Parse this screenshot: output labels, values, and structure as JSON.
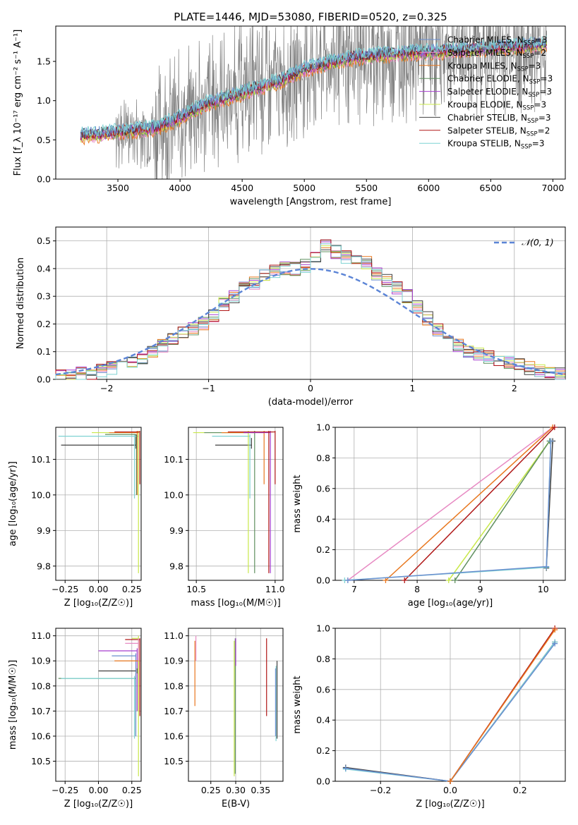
{
  "figure": {
    "title": "PLATE=1446, MJD=53080, FIBERID=0520, z=0.325"
  },
  "colors": {
    "data": "#808080",
    "chabrier_miles": "#6a8fcf",
    "salpeter_miles": "#e78ac3",
    "kroupa_miles": "#e8771e",
    "chabrier_elodie": "#5f8f5f",
    "salpeter_elodie": "#a63fcf",
    "kroupa_elodie": "#c8e84a",
    "chabrier_stelib": "#404040",
    "salpeter_stelib": "#b01717",
    "kroupa_stelib": "#7fd3d3",
    "normal": "#5b84d6",
    "grid": "#b0b0b0"
  },
  "chart_data": [
    {
      "id": "spectrum",
      "type": "line",
      "title": "PLATE=1446, MJD=53080, FIBERID=0520, z=0.325",
      "xlabel": "wavelength [Angstrom, rest frame]",
      "ylabel": "Flux [f_λ 10⁻¹⁷ erg cm⁻² s⁻¹ A⁻¹]",
      "xlim": [
        3000,
        7100
      ],
      "ylim": [
        0,
        1.95
      ],
      "xticks": [
        "3500",
        "4000",
        "4500",
        "5000",
        "5500",
        "6000",
        "6500",
        "7000"
      ],
      "xtick_values": [
        3500,
        4000,
        4500,
        5000,
        5500,
        6000,
        6500,
        7000
      ],
      "yticks": [
        "0.0",
        "0.5",
        "1.0",
        "1.5"
      ],
      "ytick_values": [
        0,
        0.5,
        1.0,
        1.5
      ],
      "grid": false,
      "legend_position": "upper-right",
      "legend": [
        {
          "label": "Chabrier MILES, N",
          "sub": "SSP",
          "tail": "=3",
          "color": "chabrier_miles"
        },
        {
          "label": "Salpeter MILES, N",
          "sub": "SSP",
          "tail": "=2",
          "color": "salpeter_miles"
        },
        {
          "label": "Kroupa MILES, N",
          "sub": "SSP",
          "tail": "=3",
          "color": "kroupa_miles"
        },
        {
          "label": "Chabrier ELODIE, N",
          "sub": "SSP",
          "tail": "=3",
          "color": "chabrier_elodie"
        },
        {
          "label": "Salpeter ELODIE, N",
          "sub": "SSP",
          "tail": "=3",
          "color": "salpeter_elodie"
        },
        {
          "label": "Kroupa ELODIE, N",
          "sub": "SSP",
          "tail": "=3",
          "color": "kroupa_elodie"
        },
        {
          "label": "Chabrier STELIB, N",
          "sub": "SSP",
          "tail": "=3",
          "color": "chabrier_stelib"
        },
        {
          "label": "Salpeter STELIB, N",
          "sub": "SSP",
          "tail": "=2",
          "color": "salpeter_stelib"
        },
        {
          "label": "Kroupa STELIB, N",
          "sub": "SSP",
          "tail": "=3",
          "color": "kroupa_stelib"
        }
      ],
      "continuum_x": [
        3200,
        3400,
        3600,
        3800,
        4000,
        4200,
        4400,
        4600,
        4800,
        5000,
        5200,
        5400,
        5600,
        5800,
        6000,
        6200,
        6400,
        6600,
        6800,
        6950
      ],
      "continuum_y": [
        0.55,
        0.58,
        0.62,
        0.65,
        0.78,
        0.95,
        1.05,
        1.15,
        1.25,
        1.4,
        1.48,
        1.55,
        1.58,
        1.6,
        1.62,
        1.64,
        1.66,
        1.68,
        1.7,
        1.72
      ]
    },
    {
      "id": "residuals",
      "type": "bar",
      "xlabel": "(data-model)/error",
      "ylabel": "Normed distribution",
      "xlim": [
        -2.5,
        2.5
      ],
      "ylim": [
        0,
        0.55
      ],
      "xticks": [
        "−2",
        "−1",
        "0",
        "1",
        "2"
      ],
      "xtick_values": [
        -2,
        -1,
        0,
        1,
        2
      ],
      "yticks": [
        "0.0",
        "0.1",
        "0.2",
        "0.3",
        "0.4",
        "0.5"
      ],
      "ytick_values": [
        0,
        0.1,
        0.2,
        0.3,
        0.4,
        0.5
      ],
      "grid": true,
      "legend_position": "upper-right",
      "legend_label": "𝒩(0, 1)",
      "bin_width": 0.1,
      "bin_start": -2.5,
      "hist_values": [
        0.01,
        0.01,
        0.02,
        0.02,
        0.03,
        0.04,
        0.05,
        0.06,
        0.08,
        0.1,
        0.12,
        0.15,
        0.17,
        0.18,
        0.2,
        0.23,
        0.27,
        0.3,
        0.33,
        0.35,
        0.38,
        0.39,
        0.4,
        0.4,
        0.41,
        0.44,
        0.48,
        0.46,
        0.44,
        0.43,
        0.42,
        0.38,
        0.36,
        0.33,
        0.3,
        0.26,
        0.22,
        0.18,
        0.15,
        0.12,
        0.1,
        0.09,
        0.08,
        0.07,
        0.06,
        0.05,
        0.04,
        0.03,
        0.03,
        0.02
      ]
    },
    {
      "id": "age-vs-Z",
      "type": "scatter",
      "xlabel": "Z [log₁₀(Z/Z☉)]",
      "ylabel": "age  [log₁₀(age/yr)]",
      "xlim": [
        -0.32,
        0.32
      ],
      "ylim": [
        9.76,
        10.19
      ],
      "xticks": [
        "−0.25",
        "0.00",
        "0.25"
      ],
      "xtick_values": [
        -0.25,
        0.0,
        0.25
      ],
      "yticks": [
        "9.8",
        "9.9",
        "10.0",
        "10.1"
      ],
      "ytick_values": [
        9.8,
        9.9,
        10.0,
        10.1
      ],
      "grid": true
    },
    {
      "id": "age-vs-mass",
      "type": "scatter",
      "xlabel": "mass [log₁₀(M/M☉)]",
      "xlim": [
        10.45,
        11.05
      ],
      "ylim": [
        9.76,
        10.19
      ],
      "xticks": [
        "10.5",
        "11.0"
      ],
      "xtick_values": [
        10.5,
        11.0
      ],
      "yticks": [
        "9.8",
        "9.9",
        "10.0",
        "10.1"
      ],
      "ytick_values": [
        9.8,
        9.9,
        10.0,
        10.1
      ],
      "grid": true
    },
    {
      "id": "mass-weight-vs-age",
      "type": "line",
      "xlabel": "age  [log₁₀(age/yr)]",
      "ylabel": "mass weight",
      "xlim": [
        6.7,
        10.35
      ],
      "ylim": [
        0,
        1.0
      ],
      "xticks": [
        "7",
        "8",
        "9",
        "10"
      ],
      "xtick_values": [
        7,
        8,
        9,
        10
      ],
      "yticks": [
        "0.0",
        "0.2",
        "0.4",
        "0.6",
        "0.8",
        "1.0"
      ],
      "ytick_values": [
        0,
        0.2,
        0.4,
        0.6,
        0.8,
        1.0
      ],
      "grid": true,
      "series": [
        {
          "color": "salpeter_miles",
          "x": [
            6.9,
            10.15
          ],
          "y": [
            0.0,
            1.0
          ]
        },
        {
          "color": "kroupa_miles",
          "x": [
            7.5,
            10.15
          ],
          "y": [
            0.0,
            1.0
          ]
        },
        {
          "color": "salpeter_stelib",
          "x": [
            7.8,
            10.18
          ],
          "y": [
            0.0,
            1.0
          ]
        },
        {
          "color": "kroupa_elodie",
          "x": [
            8.5,
            10.1
          ],
          "y": [
            0.0,
            0.91
          ]
        },
        {
          "color": "chabrier_elodie",
          "x": [
            8.6,
            10.1
          ],
          "y": [
            0.0,
            0.91
          ]
        },
        {
          "color": "chabrier_stelib",
          "x": [
            10.05,
            10.15
          ],
          "y": [
            0.08,
            0.91
          ]
        },
        {
          "color": "kroupa_stelib",
          "x": [
            6.85,
            10.05,
            10.12
          ],
          "y": [
            0.0,
            0.085,
            0.91
          ]
        },
        {
          "color": "chabrier_miles",
          "x": [
            6.9,
            10.05,
            10.12
          ],
          "y": [
            0.0,
            0.09,
            0.91
          ]
        }
      ]
    },
    {
      "id": "mass-vs-Z",
      "type": "scatter",
      "xlabel": "Z [log₁₀(Z/Z☉)]",
      "ylabel": "mass [log₁₀(M/M☉)]",
      "xlim": [
        -0.32,
        0.32
      ],
      "ylim": [
        10.42,
        11.03
      ],
      "xticks": [
        "−0.25",
        "0.00",
        "0.25"
      ],
      "xtick_values": [
        -0.25,
        0.0,
        0.25
      ],
      "yticks": [
        "10.5",
        "10.6",
        "10.7",
        "10.8",
        "10.9",
        "11.0"
      ],
      "ytick_values": [
        10.5,
        10.6,
        10.7,
        10.8,
        10.9,
        11.0
      ],
      "grid": true
    },
    {
      "id": "mass-vs-EBV",
      "type": "scatter",
      "xlabel": "E(B-V)",
      "xlim": [
        0.205,
        0.395
      ],
      "ylim": [
        10.42,
        11.03
      ],
      "xticks": [
        "0.25",
        "0.30",
        "0.35"
      ],
      "xtick_values": [
        0.25,
        0.3,
        0.35
      ],
      "yticks": [
        "10.5",
        "10.6",
        "10.7",
        "10.8",
        "10.9",
        "11.0"
      ],
      "ytick_values": [
        10.5,
        10.6,
        10.7,
        10.8,
        10.9,
        11.0
      ],
      "grid": true
    },
    {
      "id": "mass-weight-vs-Z",
      "type": "line",
      "xlabel": "Z [log₁₀(Z/Z☉)]",
      "ylabel": "mass weight",
      "xlim": [
        -0.33,
        0.33
      ],
      "ylim": [
        0,
        1.0
      ],
      "xticks": [
        "−0.2",
        "0.0",
        "0.2"
      ],
      "xtick_values": [
        -0.2,
        0.0,
        0.2
      ],
      "yticks": [
        "0.0",
        "0.2",
        "0.4",
        "0.6",
        "0.8",
        "1.0"
      ],
      "ytick_values": [
        0,
        0.2,
        0.4,
        0.6,
        0.8,
        1.0
      ],
      "grid": true,
      "series": [
        {
          "color": "chabrier_stelib",
          "x": [
            -0.3,
            0.0,
            0.3
          ],
          "y": [
            0.09,
            0.0,
            0.91
          ]
        },
        {
          "color": "kroupa_stelib",
          "x": [
            -0.3,
            0.0,
            0.3
          ],
          "y": [
            0.08,
            0.0,
            0.91
          ]
        },
        {
          "color": "chabrier_miles",
          "x": [
            -0.3,
            0.0,
            0.3
          ],
          "y": [
            0.085,
            0.0,
            0.9
          ]
        },
        {
          "color": "salpeter_stelib",
          "x": [
            0.0,
            0.3
          ],
          "y": [
            0.0,
            1.0
          ]
        },
        {
          "color": "kroupa_miles",
          "x": [
            0.0,
            0.3
          ],
          "y": [
            0.0,
            0.99
          ]
        }
      ]
    }
  ]
}
